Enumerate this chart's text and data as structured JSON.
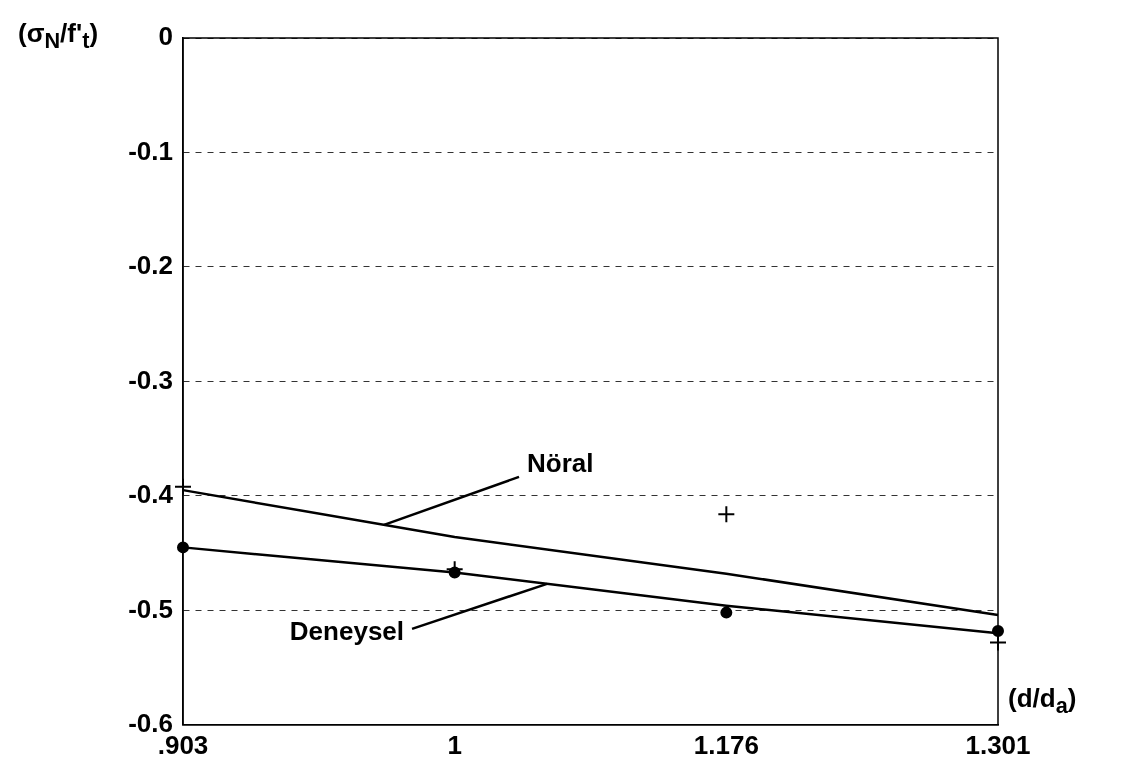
{
  "chart_data": {
    "type": "line",
    "xlabel": "(d/d$_{a}$)",
    "ylabel": "(σ$_{N}$/f'$_{t}$)",
    "categories": [
      ".903",
      "1",
      "1.176",
      "1.301"
    ],
    "ylim": [
      -0.6,
      0
    ],
    "yticks": [
      0,
      -0.1,
      -0.2,
      -0.3,
      -0.4,
      -0.5,
      -0.6
    ],
    "grid": "y",
    "series": [
      {
        "name": "Nöral",
        "type": "line",
        "color": "#000000",
        "marker": "none",
        "values": [
          -0.395,
          -0.436,
          -0.468,
          -0.504
        ]
      },
      {
        "name": "Deneysel",
        "type": "line",
        "color": "#000000",
        "marker": "none",
        "values": [
          -0.445,
          -0.467,
          -0.496,
          -0.52
        ]
      },
      {
        "type": "scatter",
        "color": "#000000",
        "marker": "cross",
        "values": [
          -0.392,
          -0.464,
          -0.416,
          -0.528
        ]
      },
      {
        "type": "scatter",
        "color": "#000000",
        "marker": "circle",
        "values": [
          -0.445,
          -0.467,
          -0.502,
          -0.518
        ]
      }
    ]
  }
}
